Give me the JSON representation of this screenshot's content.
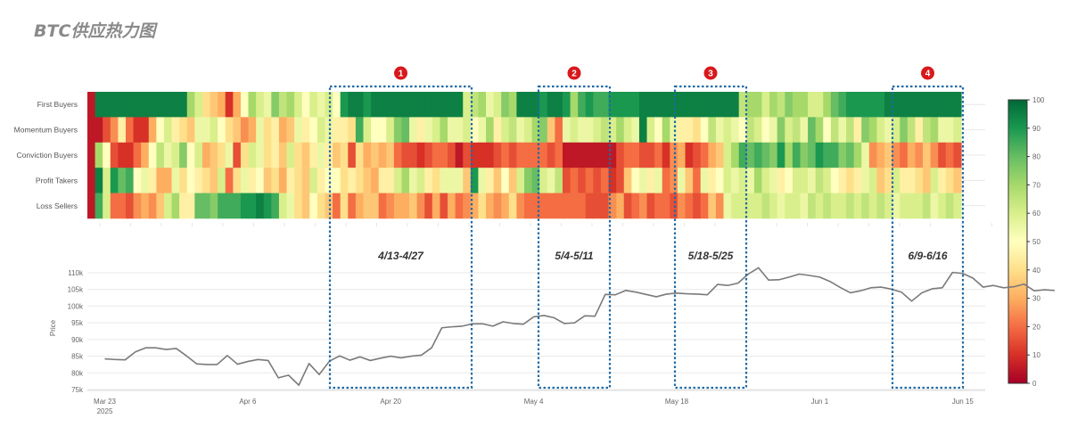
{
  "title": "BTC供应热力图",
  "chart_data": [
    {
      "type": "heatmap",
      "rows": [
        "First Buyers",
        "Momentum Buyers",
        "Conviction Buyers",
        "Profit Takers",
        "Loss Sellers"
      ],
      "colorbar": {
        "min": 0,
        "max": 100,
        "ticks": [
          "100",
          "90",
          "80",
          "70",
          "60",
          "50",
          "40",
          "30",
          "20",
          "10",
          "0"
        ]
      },
      "colorscale": [
        "#a50026",
        "#d73027",
        "#f46d43",
        "#fdae61",
        "#fee08b",
        "#ffffbf",
        "#d9ef8b",
        "#a6d96a",
        "#66bd63",
        "#1a9850",
        "#006837"
      ],
      "values": [
        [
          5,
          95,
          95,
          95,
          95,
          95,
          95,
          95,
          95,
          95,
          95,
          95,
          95,
          70,
          60,
          40,
          35,
          30,
          10,
          30,
          50,
          70,
          60,
          55,
          75,
          65,
          70,
          60,
          50,
          60,
          55,
          60,
          50,
          90,
          95,
          95,
          90,
          95,
          95,
          95,
          95,
          95,
          95,
          95,
          95,
          95,
          95,
          95,
          95,
          60,
          65,
          70,
          55,
          60,
          75,
          70,
          95,
          95,
          95,
          90,
          95,
          95,
          90,
          70,
          85,
          90,
          85,
          85,
          90,
          90,
          90,
          90,
          95,
          95,
          95,
          95,
          95,
          95,
          95,
          95,
          95,
          95,
          95,
          95,
          95,
          65,
          70,
          70,
          60,
          70,
          65,
          75,
          70,
          70,
          60,
          60,
          70,
          80,
          85,
          90,
          90,
          90,
          90,
          90,
          95,
          95,
          95,
          95,
          95,
          95,
          95,
          95,
          95,
          95
        ],
        [
          5,
          5,
          15,
          25,
          45,
          20,
          10,
          10,
          30,
          50,
          60,
          45,
          40,
          35,
          55,
          55,
          60,
          50,
          40,
          35,
          25,
          30,
          55,
          40,
          45,
          30,
          35,
          55,
          45,
          50,
          60,
          55,
          45,
          45,
          40,
          85,
          60,
          50,
          50,
          60,
          75,
          80,
          55,
          45,
          55,
          60,
          70,
          55,
          55,
          60,
          50,
          55,
          70,
          45,
          60,
          65,
          55,
          60,
          70,
          75,
          35,
          20,
          55,
          60,
          55,
          55,
          60,
          65,
          60,
          70,
          60,
          55,
          95,
          60,
          50,
          70,
          55,
          45,
          45,
          40,
          50,
          65,
          55,
          60,
          55,
          50,
          65,
          60,
          50,
          55,
          75,
          60,
          65,
          55,
          80,
          70,
          50,
          65,
          55,
          65,
          45,
          75,
          70,
          60,
          55,
          60,
          75,
          65,
          45,
          65,
          70,
          55,
          55,
          60
        ],
        [
          5,
          70,
          50,
          15,
          10,
          10,
          20,
          30,
          50,
          65,
          55,
          60,
          75,
          50,
          60,
          30,
          35,
          40,
          55,
          15,
          40,
          60,
          55,
          40,
          45,
          35,
          60,
          40,
          35,
          45,
          55,
          45,
          35,
          40,
          15,
          40,
          30,
          35,
          30,
          35,
          20,
          15,
          15,
          10,
          15,
          20,
          20,
          15,
          5,
          15,
          10,
          10,
          10,
          15,
          20,
          15,
          20,
          20,
          20,
          20,
          15,
          20,
          5,
          5,
          5,
          5,
          5,
          5,
          5,
          15,
          20,
          20,
          15,
          15,
          20,
          10,
          25,
          30,
          10,
          15,
          20,
          30,
          35,
          60,
          70,
          85,
          80,
          85,
          80,
          75,
          90,
          70,
          85,
          75,
          80,
          90,
          85,
          85,
          75,
          80,
          70,
          55,
          25,
          30,
          35,
          25,
          20,
          30,
          25,
          35,
          25,
          15,
          20,
          15
        ],
        [
          5,
          95,
          60,
          90,
          80,
          85,
          50,
          55,
          45,
          30,
          30,
          55,
          40,
          50,
          45,
          40,
          35,
          60,
          20,
          40,
          55,
          45,
          50,
          35,
          40,
          30,
          45,
          40,
          35,
          60,
          45,
          50,
          50,
          40,
          45,
          40,
          35,
          30,
          45,
          45,
          60,
          70,
          55,
          60,
          45,
          40,
          55,
          55,
          55,
          35,
          90,
          55,
          45,
          35,
          50,
          35,
          60,
          75,
          80,
          60,
          55,
          65,
          15,
          20,
          15,
          20,
          15,
          20,
          10,
          15,
          35,
          50,
          55,
          45,
          55,
          20,
          25,
          55,
          35,
          20,
          55,
          45,
          50,
          60,
          55,
          60,
          55,
          70,
          60,
          55,
          45,
          50,
          60,
          60,
          55,
          65,
          60,
          50,
          45,
          40,
          45,
          55,
          60,
          35,
          40,
          60,
          45,
          45,
          40,
          35,
          60,
          45,
          40,
          35
        ],
        [
          5,
          85,
          60,
          20,
          20,
          15,
          25,
          30,
          25,
          35,
          60,
          70,
          45,
          45,
          80,
          80,
          75,
          85,
          85,
          85,
          90,
          90,
          95,
          90,
          85,
          60,
          55,
          40,
          35,
          50,
          40,
          35,
          20,
          40,
          20,
          30,
          35,
          35,
          20,
          25,
          30,
          30,
          35,
          25,
          15,
          30,
          15,
          30,
          20,
          25,
          30,
          40,
          30,
          25,
          30,
          40,
          25,
          20,
          20,
          20,
          20,
          20,
          20,
          20,
          20,
          15,
          15,
          15,
          25,
          30,
          15,
          20,
          25,
          15,
          20,
          20,
          15,
          25,
          20,
          15,
          20,
          35,
          25,
          55,
          60,
          60,
          60,
          60,
          65,
          60,
          55,
          60,
          60,
          55,
          65,
          60,
          65,
          60,
          60,
          65,
          60,
          65,
          60,
          65,
          60,
          55,
          60,
          60,
          60,
          65,
          55,
          60,
          65,
          60
        ]
      ]
    },
    {
      "type": "line",
      "ylabel": "Price",
      "y_ticks": [
        "110k",
        "105k",
        "100k",
        "95k",
        "90k",
        "85k",
        "80k",
        "75k"
      ],
      "ylim": [
        74000,
        112000
      ],
      "x_ticks": [
        {
          "label": "Mar 23",
          "sub": "2025",
          "day": 0
        },
        {
          "label": "Apr 6",
          "sub": "",
          "day": 14
        },
        {
          "label": "Apr 20",
          "sub": "",
          "day": 28
        },
        {
          "label": "May 4",
          "sub": "",
          "day": 42
        },
        {
          "label": "May 18",
          "sub": "",
          "day": 56
        },
        {
          "label": "Jun 1",
          "sub": "",
          "day": 70
        },
        {
          "label": "Jun 15",
          "sub": "",
          "day": 84
        }
      ],
      "x_range_days": [
        -1.7,
        86.2
      ],
      "series": [
        {
          "values": [
            84200,
            84000,
            83900,
            86300,
            87500,
            87500,
            87000,
            87300,
            85100,
            82700,
            82500,
            82500,
            85200,
            82600,
            83400,
            84000,
            83700,
            78500,
            79300,
            76300,
            82800,
            79500,
            83500,
            85100,
            83800,
            84800,
            83700,
            84400,
            85000,
            84500,
            85000,
            85300,
            87500,
            93500,
            93800,
            94000,
            94700,
            94700,
            94000,
            95300,
            94800,
            94600,
            96800,
            97200,
            96500,
            94800,
            95000,
            97100,
            97000,
            103500,
            103400,
            104700,
            104200,
            103500,
            102800,
            103600,
            103900,
            103700,
            103600,
            103400,
            106500,
            106200,
            106900,
            109600,
            111500,
            107800,
            107900,
            108700,
            109600,
            109200,
            108700,
            107400,
            105600,
            104000,
            104600,
            105500,
            105700,
            105100,
            104200,
            101500,
            104000,
            105200,
            105500,
            110100,
            109800,
            108400,
            105700,
            106200,
            105500,
            105800,
            106600,
            104600,
            104900,
            104700
          ]
        }
      ]
    },
    {
      "type": "annotations",
      "windows": [
        {
          "badge": "1",
          "label": "4/13-4/27"
        },
        {
          "badge": "2",
          "label": "5/4-5/11"
        },
        {
          "badge": "3",
          "label": "5/18-5/25"
        },
        {
          "badge": "4",
          "label": "6/9-6/16"
        }
      ],
      "box_color": "#1f6aa5",
      "badge_color": "#d7191c"
    }
  ]
}
